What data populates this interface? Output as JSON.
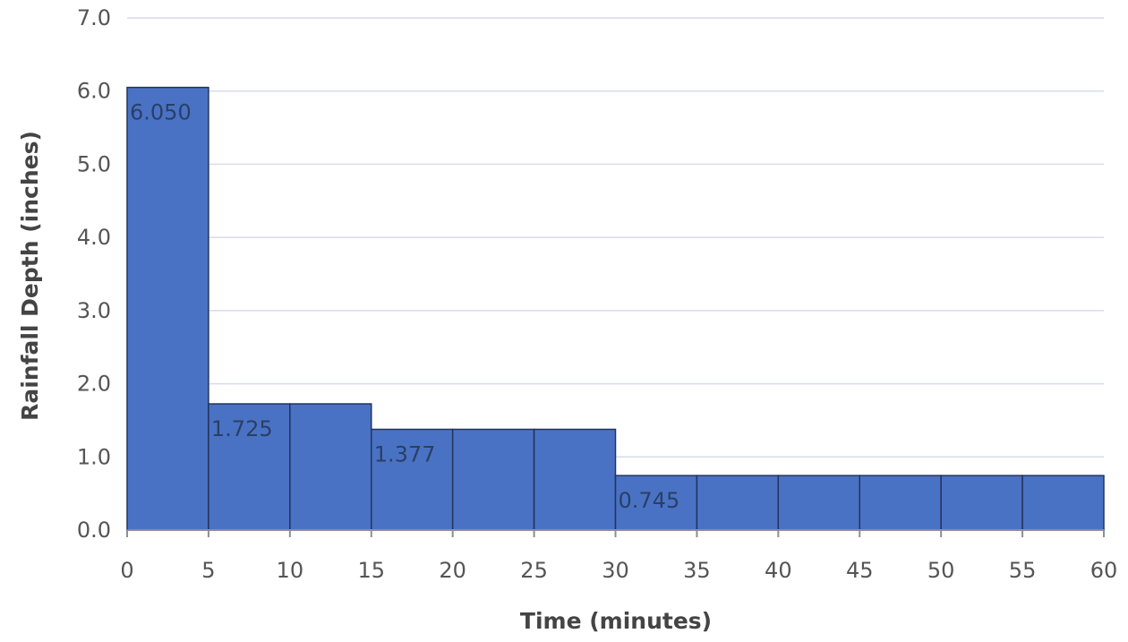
{
  "chart_data": {
    "type": "bar",
    "bar_style": "histogram",
    "x_bins": [
      [
        0,
        5
      ],
      [
        5,
        10
      ],
      [
        10,
        15
      ],
      [
        15,
        20
      ],
      [
        20,
        25
      ],
      [
        25,
        30
      ],
      [
        30,
        35
      ],
      [
        35,
        40
      ],
      [
        40,
        45
      ],
      [
        45,
        50
      ],
      [
        50,
        55
      ],
      [
        55,
        60
      ]
    ],
    "values": [
      6.05,
      1.725,
      1.725,
      1.377,
      1.377,
      1.377,
      0.745,
      0.745,
      0.745,
      0.745,
      0.745,
      0.745
    ],
    "data_labels": [
      {
        "x": 0,
        "y": 6.05,
        "text": "6.050"
      },
      {
        "x": 5,
        "y": 1.725,
        "text": "1.725"
      },
      {
        "x": 15,
        "y": 1.377,
        "text": "1.377"
      },
      {
        "x": 30,
        "y": 0.745,
        "text": "0.745"
      }
    ],
    "xlabel": "Time (minutes)",
    "ylabel": "Rainfall Depth (inches)",
    "xlim": [
      0,
      60
    ],
    "ylim": [
      0,
      7
    ],
    "xticks": [
      "0",
      "5",
      "10",
      "15",
      "20",
      "25",
      "30",
      "35",
      "40",
      "45",
      "50",
      "55",
      "60"
    ],
    "yticks": [
      "0.0",
      "1.0",
      "2.0",
      "3.0",
      "4.0",
      "5.0",
      "6.0",
      "7.0"
    ],
    "grid": "horizontal",
    "legend": "none",
    "bar_color": "#4a72c4",
    "bar_edge_color": "#23345c"
  }
}
